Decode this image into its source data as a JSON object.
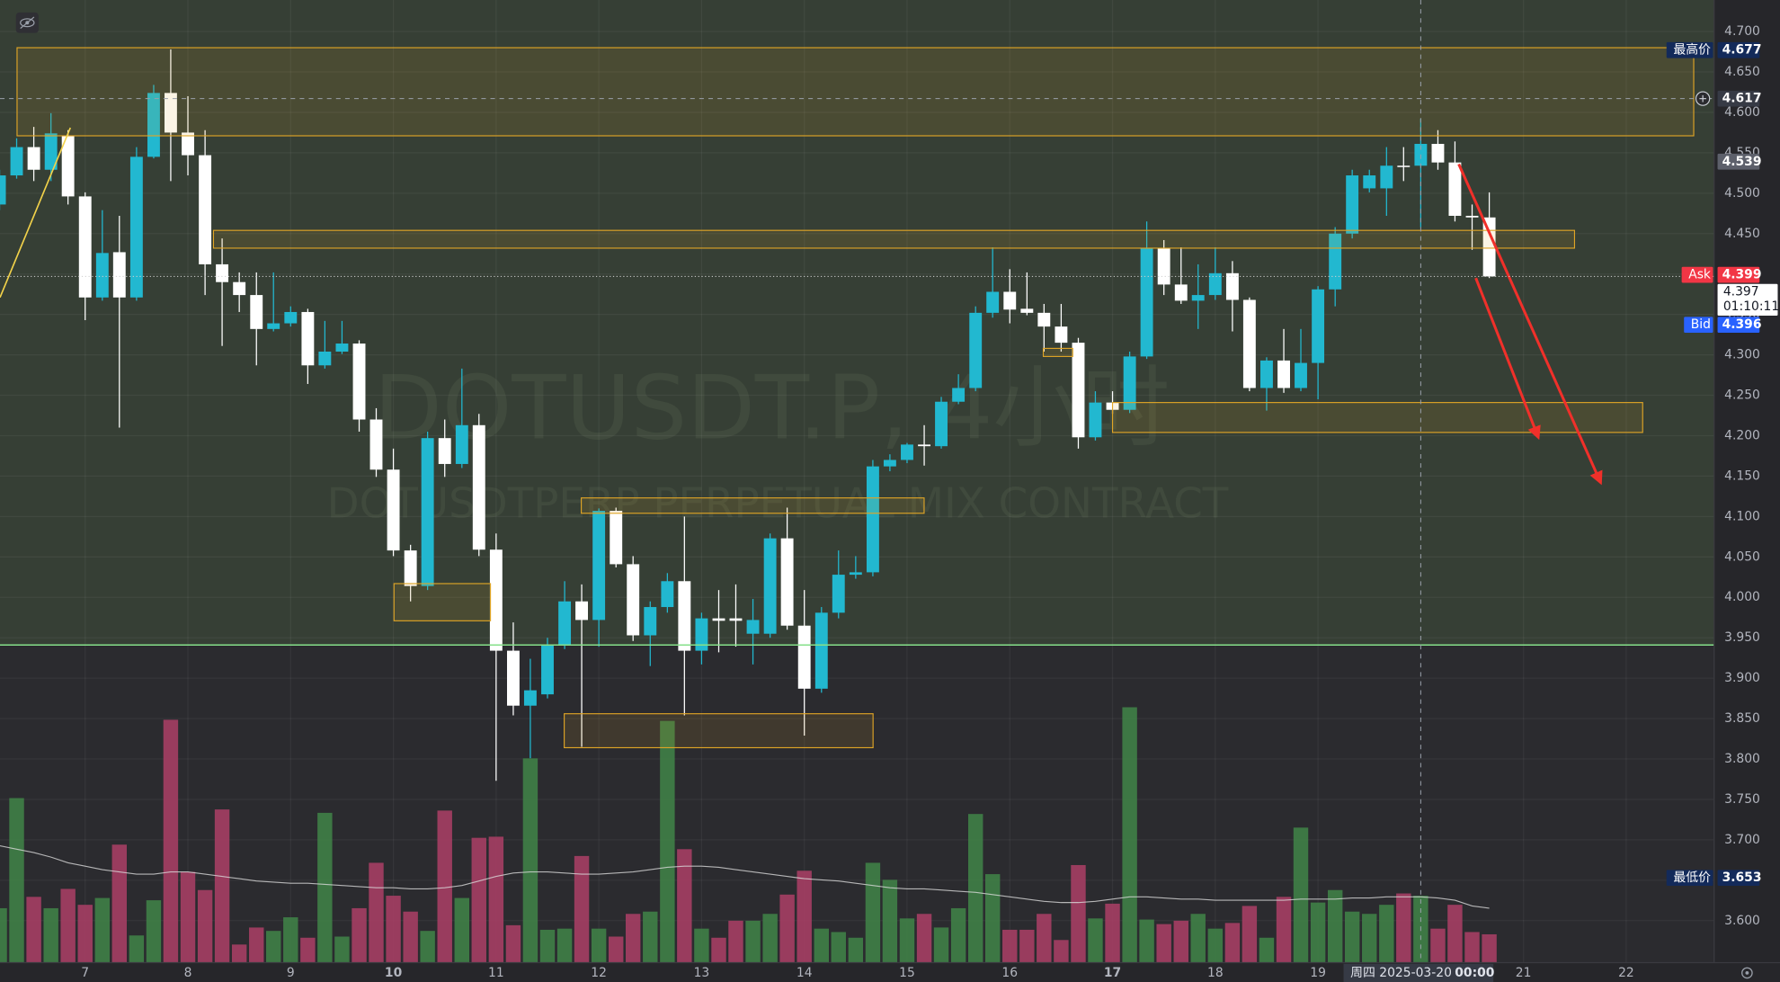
{
  "chart_data": {
    "type": "candlestick",
    "title": "DOTUSDT.P, 4小时",
    "subtitle": "DOTUSDTPERP PERPETUAL MIX CONTRACT",
    "xlim": [
      6.171,
      22.856
    ],
    "ylim": [
      3.548,
      4.739
    ],
    "xticks": [
      7,
      8,
      9,
      10,
      11,
      12,
      13,
      14,
      15,
      16,
      17,
      18,
      19,
      21,
      22
    ],
    "xtick_emphasis": [
      10,
      17
    ],
    "yticks": [
      {
        "value": 3.6,
        "label": "3.600"
      },
      {
        "value": 3.65,
        "label": "3.650"
      },
      {
        "value": 3.7,
        "label": "3.700"
      },
      {
        "value": 3.75,
        "label": "3.750"
      },
      {
        "value": 3.8,
        "label": "3.800"
      },
      {
        "value": 3.85,
        "label": "3.850"
      },
      {
        "value": 3.9,
        "label": "3.900"
      },
      {
        "value": 3.95,
        "label": "3.950"
      },
      {
        "value": 4.0,
        "label": "4.000"
      },
      {
        "value": 4.05,
        "label": "4.050"
      },
      {
        "value": 4.1,
        "label": "4.100"
      },
      {
        "value": 4.15,
        "label": "4.150"
      },
      {
        "value": 4.2,
        "label": "4.200"
      },
      {
        "value": 4.25,
        "label": "4.250"
      },
      {
        "value": 4.3,
        "label": "4.300"
      },
      {
        "value": 4.35,
        "label": "4.350"
      },
      {
        "value": 4.4,
        "label": "4.400"
      },
      {
        "value": 4.45,
        "label": "4.450"
      },
      {
        "value": 4.5,
        "label": "4.500"
      },
      {
        "value": 4.55,
        "label": "4.550"
      },
      {
        "value": 4.6,
        "label": "4.600"
      },
      {
        "value": 4.65,
        "label": "4.650"
      },
      {
        "value": 4.7,
        "label": "4.700"
      }
    ],
    "grid": true,
    "up_color": "#22b8d0",
    "down_color": "#ffffff",
    "volume_up_color": "#3f7f47",
    "volume_down_color": "#a53e64",
    "volume_ma_color": "#d9d9d9",
    "x": [
      6.167,
      6.333,
      6.5,
      6.667,
      6.833,
      7,
      7.167,
      7.333,
      7.5,
      7.667,
      7.833,
      8,
      8.167,
      8.333,
      8.5,
      8.667,
      8.833,
      9,
      9.167,
      9.333,
      9.5,
      9.667,
      9.833,
      10,
      10.167,
      10.333,
      10.5,
      10.667,
      10.833,
      11,
      11.167,
      11.333,
      11.5,
      11.667,
      11.833,
      12,
      12.167,
      12.333,
      12.5,
      12.667,
      12.833,
      13,
      13.167,
      13.333,
      13.5,
      13.667,
      13.833,
      14,
      14.167,
      14.333,
      14.5,
      14.667,
      14.833,
      15,
      15.167,
      15.333,
      15.5,
      15.667,
      15.833,
      16,
      16.167,
      16.333,
      16.5,
      16.667,
      16.833,
      17,
      17.167,
      17.333,
      17.5,
      17.667,
      17.833,
      18,
      18.167,
      18.333,
      18.5,
      18.667,
      18.833,
      19,
      19.167,
      19.333,
      19.5,
      19.667,
      19.833,
      20,
      20.167,
      20.333,
      20.5,
      20.667
    ],
    "open": [
      4.486,
      4.522,
      4.557,
      4.529,
      4.571,
      4.496,
      4.371,
      4.427,
      4.371,
      4.545,
      4.624,
      4.575,
      4.547,
      4.412,
      4.39,
      4.374,
      4.332,
      4.339,
      4.353,
      4.287,
      4.304,
      4.314,
      4.22,
      4.158,
      4.058,
      4.014,
      4.197,
      4.165,
      4.213,
      4.059,
      3.934,
      3.866,
      3.88,
      3.941,
      3.995,
      3.972,
      4.107,
      4.041,
      3.953,
      3.988,
      4.02,
      3.934,
      3.974,
      3.974,
      3.955,
      3.955,
      4.073,
      3.965,
      3.887,
      3.981,
      4.028,
      4.031,
      4.162,
      4.17,
      4.189,
      4.187,
      4.242,
      4.259,
      4.352,
      4.378,
      4.357,
      4.352,
      4.335,
      4.315,
      4.198,
      4.241,
      4.232,
      4.298,
      4.432,
      4.387,
      4.367,
      4.374,
      4.401,
      4.368,
      4.259,
      4.293,
      4.259,
      4.29,
      4.381,
      4.45,
      4.506,
      4.506,
      4.534,
      4.534,
      4.561,
      4.538,
      4.472,
      4.47
    ],
    "high": [
      4.529,
      4.568,
      4.582,
      4.599,
      4.578,
      4.501,
      4.479,
      4.472,
      4.557,
      4.634,
      4.678,
      4.62,
      4.578,
      4.444,
      4.402,
      4.402,
      4.402,
      4.36,
      4.357,
      4.342,
      4.342,
      4.318,
      4.234,
      4.184,
      4.065,
      4.205,
      4.22,
      4.283,
      4.227,
      4.079,
      3.969,
      3.924,
      3.95,
      4.02,
      4.016,
      4.11,
      4.111,
      4.051,
      3.995,
      4.03,
      4.1,
      3.981,
      4.009,
      4.016,
      3.998,
      4.079,
      4.111,
      4.009,
      3.988,
      4.058,
      4.051,
      4.17,
      4.177,
      4.191,
      4.213,
      4.248,
      4.276,
      4.36,
      4.433,
      4.406,
      4.402,
      4.363,
      4.363,
      4.321,
      4.255,
      4.255,
      4.304,
      4.465,
      4.442,
      4.433,
      4.412,
      4.433,
      4.416,
      4.371,
      4.297,
      4.332,
      4.332,
      4.385,
      4.458,
      4.529,
      4.529,
      4.557,
      4.557,
      4.592,
      4.578,
      4.564,
      4.486,
      4.501
    ],
    "low": [
      4.479,
      4.518,
      4.515,
      4.515,
      4.486,
      4.343,
      4.367,
      4.21,
      4.367,
      4.543,
      4.515,
      4.522,
      4.374,
      4.311,
      4.353,
      4.287,
      4.329,
      4.335,
      4.264,
      4.283,
      4.301,
      4.205,
      4.149,
      4.051,
      3.995,
      4.009,
      4.149,
      4.16,
      4.051,
      3.773,
      3.854,
      3.801,
      3.875,
      3.936,
      3.815,
      3.939,
      4.037,
      3.946,
      3.915,
      3.981,
      3.854,
      3.917,
      3.932,
      3.939,
      3.917,
      3.95,
      3.96,
      3.829,
      3.882,
      3.974,
      4.023,
      4.026,
      4.156,
      4.166,
      4.163,
      4.184,
      4.239,
      4.255,
      4.346,
      4.339,
      4.349,
      4.304,
      4.304,
      4.184,
      4.194,
      4.227,
      4.228,
      4.295,
      4.374,
      4.363,
      4.332,
      4.368,
      4.329,
      4.255,
      4.231,
      4.253,
      4.255,
      4.245,
      4.36,
      4.444,
      4.501,
      4.472,
      4.515,
      4.458,
      4.529,
      4.465,
      4.43,
      4.395
    ],
    "close": [
      4.522,
      4.557,
      4.529,
      4.574,
      4.496,
      4.371,
      4.426,
      4.371,
      4.545,
      4.624,
      4.575,
      4.547,
      4.412,
      4.39,
      4.374,
      4.332,
      4.339,
      4.353,
      4.287,
      4.304,
      4.314,
      4.22,
      4.158,
      4.058,
      4.014,
      4.197,
      4.165,
      4.213,
      4.059,
      3.934,
      3.866,
      3.885,
      3.941,
      3.995,
      3.972,
      4.107,
      4.041,
      3.953,
      3.988,
      4.02,
      3.934,
      3.974,
      3.971,
      3.971,
      3.972,
      4.073,
      3.965,
      3.887,
      3.981,
      4.028,
      4.031,
      4.162,
      4.17,
      4.189,
      4.187,
      4.242,
      4.259,
      4.352,
      4.378,
      4.356,
      4.352,
      4.335,
      4.315,
      4.198,
      4.241,
      4.232,
      4.298,
      4.432,
      4.387,
      4.367,
      4.374,
      4.401,
      4.368,
      4.259,
      4.293,
      4.259,
      4.29,
      4.381,
      4.45,
      4.522,
      4.522,
      4.534,
      4.533,
      4.561,
      4.538,
      4.472,
      4.47,
      4.397
    ],
    "volume_ylim": [
      0,
      248
    ],
    "volume": [
      48,
      145,
      58,
      48,
      65,
      51,
      57,
      104,
      24,
      55,
      214,
      80,
      64,
      135,
      16,
      31,
      28,
      40,
      22,
      132,
      23,
      48,
      88,
      59,
      45,
      28,
      134,
      57,
      110,
      111,
      33,
      180,
      29,
      30,
      94,
      30,
      23,
      43,
      45,
      213,
      100,
      30,
      22,
      37,
      37,
      43,
      60,
      81,
      30,
      27,
      22,
      88,
      73,
      39,
      43,
      31,
      48,
      131,
      78,
      29,
      29,
      43,
      20,
      86,
      39,
      52,
      225,
      38,
      34,
      37,
      43,
      30,
      35,
      50,
      22,
      58,
      119,
      53,
      64,
      45,
      43,
      51,
      61,
      59,
      30,
      51,
      27,
      25
    ],
    "volume_ma": [
      103,
      100,
      97,
      93,
      88,
      85,
      82,
      80,
      78,
      78,
      80,
      80,
      78,
      76,
      74,
      72,
      71,
      70,
      70,
      69,
      68,
      67,
      66,
      66,
      65,
      65,
      66,
      68,
      72,
      76,
      79,
      80,
      80,
      79,
      78,
      78,
      79,
      80,
      82,
      84,
      85,
      85,
      84,
      82,
      80,
      78,
      76,
      74,
      73,
      72,
      70,
      68,
      66,
      65,
      65,
      64,
      63,
      62,
      60,
      58,
      56,
      54,
      53,
      53,
      54,
      56,
      58,
      58,
      57,
      56,
      56,
      55,
      55,
      55,
      55,
      55,
      56,
      56,
      56,
      57,
      57,
      58,
      58,
      58,
      57,
      55,
      50,
      48
    ],
    "zone_line": {
      "price": 3.941,
      "color": "#86e08a",
      "fill_above": true
    },
    "boxes": [
      {
        "x": [
          6.337,
          22.657
        ],
        "y": [
          4.68,
          4.571
        ]
      },
      {
        "x": [
          8.249,
          21.497
        ],
        "y": [
          4.454,
          4.432
        ]
      },
      {
        "x": [
          17.0,
          22.16
        ],
        "y": [
          4.241,
          4.204
        ]
      },
      {
        "x": [
          11.829,
          15.166
        ],
        "y": [
          4.123,
          4.104
        ]
      },
      {
        "x": [
          10.006,
          10.945
        ],
        "y": [
          4.017,
          3.971
        ]
      },
      {
        "x": [
          11.663,
          14.669
        ],
        "y": [
          3.856,
          3.814
        ]
      },
      {
        "x": [
          16.326,
          16.613
        ],
        "y": [
          4.308,
          4.298
        ]
      }
    ],
    "box_color": "#e0a526",
    "trend_lines": [
      {
        "x": [
          6.171,
          6.856
        ],
        "y": [
          4.371,
          4.581
        ],
        "color": "#f2d24a",
        "arrow": false
      },
      {
        "x": [
          20.536,
          21.144
        ],
        "y": [
          4.395,
          4.198
        ],
        "color": "#f0302a",
        "arrow": true
      },
      {
        "x": [
          20.37,
          21.751
        ],
        "y": [
          4.536,
          4.142
        ],
        "color": "#f0302a",
        "arrow": true
      }
    ],
    "crosshair": {
      "x": 20,
      "y": 4.617,
      "date_label": "周四 2025-03-20",
      "time_label": "00:00"
    },
    "price_labels": [
      {
        "name": "最高价",
        "value": 4.677,
        "color": "#132a5a"
      },
      {
        "name": "Ask",
        "value": 4.399,
        "color": "#f23645"
      },
      {
        "name": "Bid",
        "value": 4.396,
        "color": "#2962ff"
      },
      {
        "name": "最低价",
        "value": 3.653,
        "color": "#132a5a"
      }
    ],
    "marker_label": {
      "value": 4.539,
      "color": "#5d606b"
    },
    "last_price": {
      "value": 4.397,
      "countdown": "01:10:11"
    }
  }
}
